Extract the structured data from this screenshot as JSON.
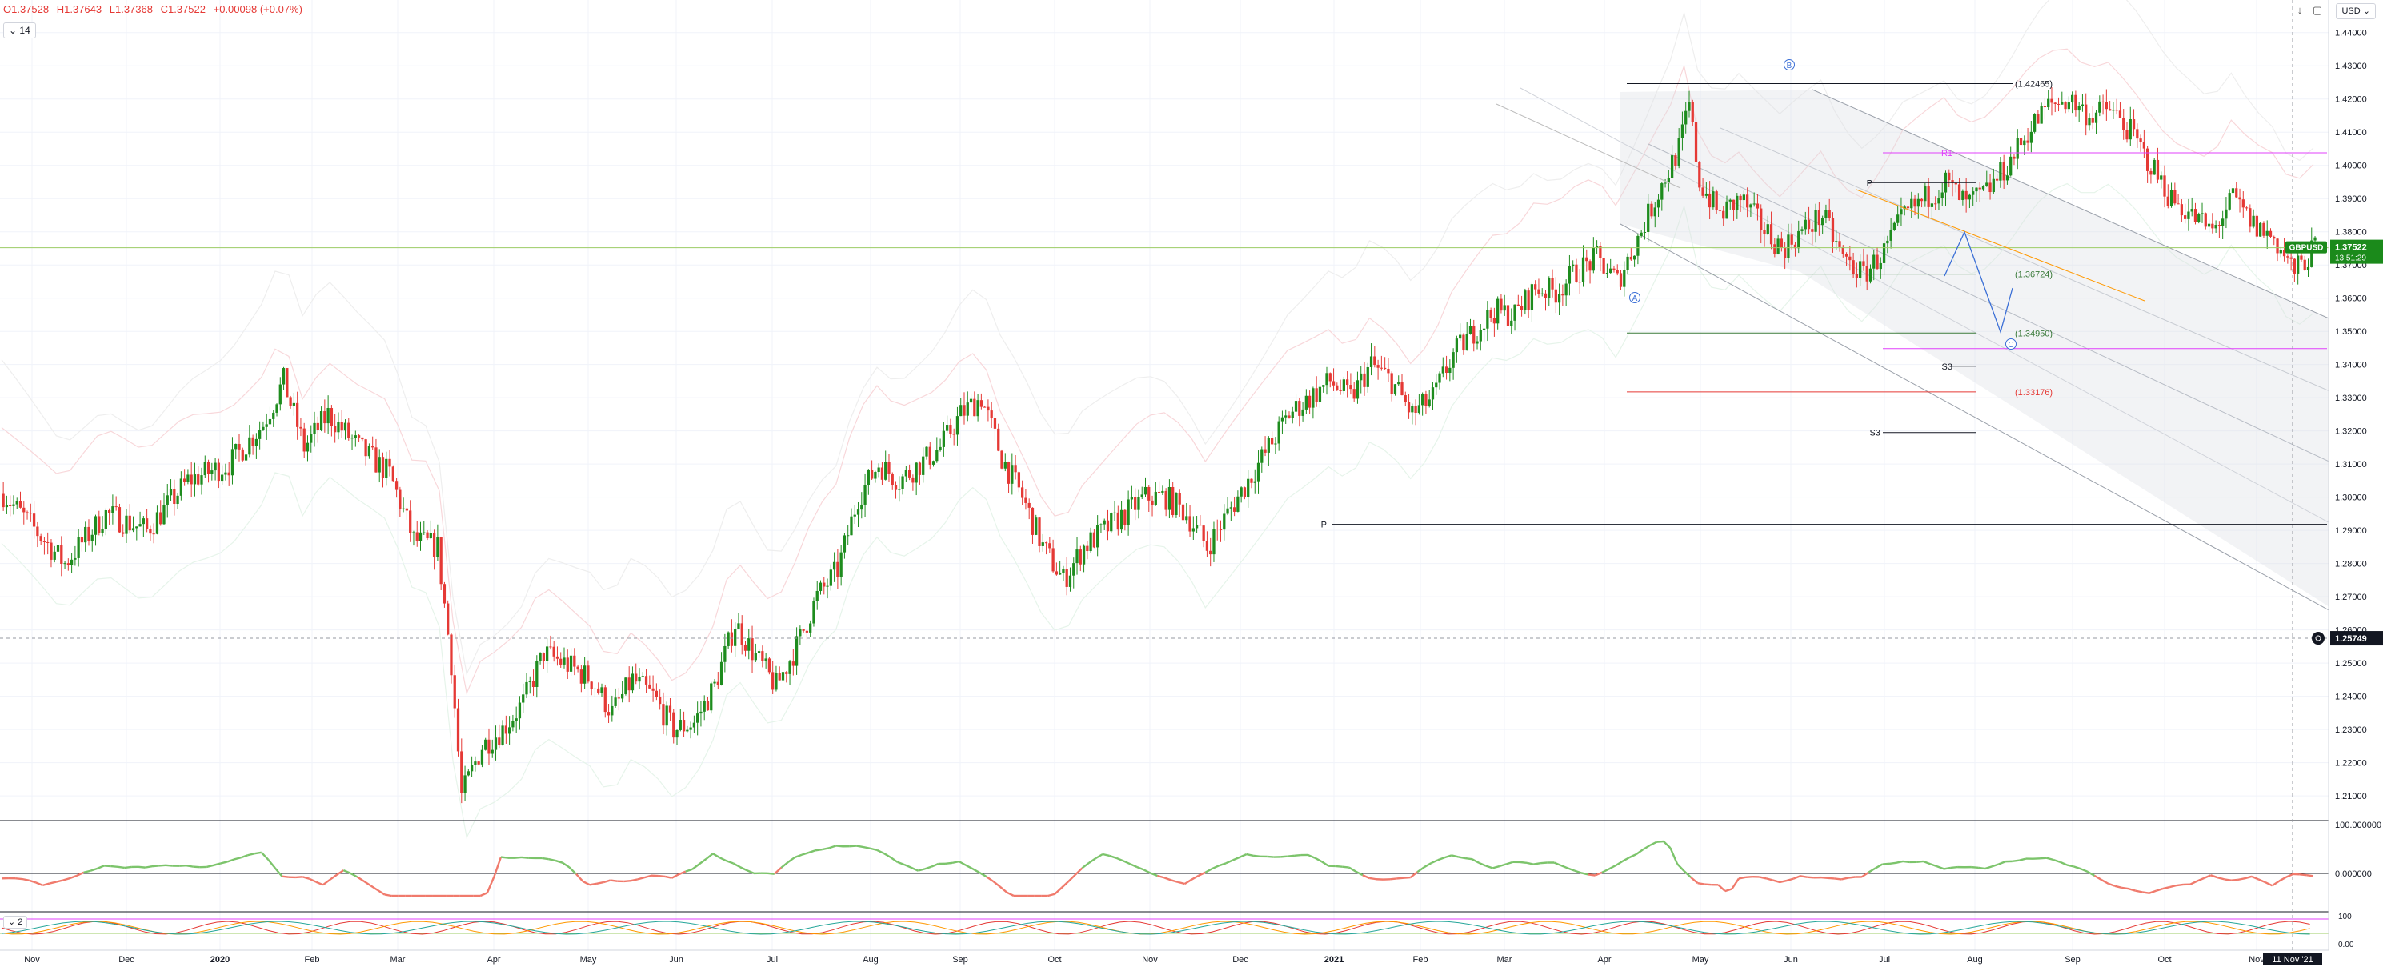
{
  "legend": {
    "open": "O1.37528",
    "high": "H1.37643",
    "low": "L1.37368",
    "close": "C1.37522",
    "change": "+0.00098 (+0.07%)",
    "indicator_value": "14",
    "indicator2_value": "2"
  },
  "currency": "USD",
  "symbol_badge": "GBPUSD",
  "last_price": "1.37522",
  "countdown": "13:51:29",
  "crosshair_price": "1.25749",
  "crosshair_date": "11 Nov '21",
  "colors": {
    "up": "#26a69a",
    "candle_up": "#1e8c1e",
    "candle_down": "#e53935",
    "badge": "#1b8a1b",
    "magenta": "#e040fb",
    "orange": "#ff9800",
    "blue": "#3b6fd6"
  },
  "chart_data": {
    "type": "candlestick",
    "symbol": "GBPUSD",
    "timeframe": "daily",
    "x_labels": [
      "Nov",
      "Dec",
      "2020",
      "Feb",
      "Mar",
      "Apr",
      "May",
      "Jun",
      "Jul",
      "Aug",
      "Sep",
      "Oct",
      "Nov",
      "Dec",
      "2021",
      "Feb",
      "Mar",
      "Apr",
      "May",
      "Jun",
      "Jul",
      "Aug",
      "Sep",
      "Oct",
      "Nov"
    ],
    "y_ticks": [
      "1.44000",
      "1.43000",
      "1.42000",
      "1.41000",
      "1.40000",
      "1.39000",
      "1.38000",
      "1.37000",
      "1.36000",
      "1.35000",
      "1.34000",
      "1.33000",
      "1.32000",
      "1.31000",
      "1.30000",
      "1.29000",
      "1.28000",
      "1.27000",
      "1.26000",
      "1.25000",
      "1.24000",
      "1.23000",
      "1.22000",
      "1.21000"
    ],
    "ylim": [
      1.204,
      1.445
    ],
    "price_path": [
      [
        0,
        1.301
      ],
      [
        18,
        1.28
      ],
      [
        30,
        1.295
      ],
      [
        42,
        1.29
      ],
      [
        54,
        1.305
      ],
      [
        66,
        1.31
      ],
      [
        76,
        1.322
      ],
      [
        82,
        1.335
      ],
      [
        88,
        1.315
      ],
      [
        95,
        1.325
      ],
      [
        104,
        1.315
      ],
      [
        113,
        1.307
      ],
      [
        120,
        1.287
      ],
      [
        127,
        1.285
      ],
      [
        131,
        1.25
      ],
      [
        134,
        1.21
      ],
      [
        140,
        1.225
      ],
      [
        146,
        1.23
      ],
      [
        152,
        1.238
      ],
      [
        158,
        1.253
      ],
      [
        164,
        1.25
      ],
      [
        172,
        1.245
      ],
      [
        178,
        1.235
      ],
      [
        184,
        1.245
      ],
      [
        190,
        1.24
      ],
      [
        196,
        1.23
      ],
      [
        202,
        1.232
      ],
      [
        208,
        1.243
      ],
      [
        214,
        1.262
      ],
      [
        220,
        1.252
      ],
      [
        226,
        1.243
      ],
      [
        232,
        1.255
      ],
      [
        238,
        1.27
      ],
      [
        244,
        1.278
      ],
      [
        250,
        1.3
      ],
      [
        256,
        1.31
      ],
      [
        262,
        1.305
      ],
      [
        268,
        1.31
      ],
      [
        274,
        1.315
      ],
      [
        280,
        1.325
      ],
      [
        286,
        1.33
      ],
      [
        292,
        1.312
      ],
      [
        298,
        1.3
      ],
      [
        304,
        1.285
      ],
      [
        310,
        1.275
      ],
      [
        316,
        1.285
      ],
      [
        322,
        1.29
      ],
      [
        328,
        1.295
      ],
      [
        334,
        1.3
      ],
      [
        340,
        1.3
      ],
      [
        346,
        1.295
      ],
      [
        352,
        1.285
      ],
      [
        358,
        1.295
      ],
      [
        364,
        1.305
      ],
      [
        370,
        1.315
      ],
      [
        376,
        1.325
      ],
      [
        382,
        1.33
      ],
      [
        388,
        1.335
      ],
      [
        394,
        1.33
      ],
      [
        400,
        1.34
      ],
      [
        406,
        1.335
      ],
      [
        412,
        1.325
      ],
      [
        418,
        1.33
      ],
      [
        424,
        1.343
      ],
      [
        430,
        1.35
      ],
      [
        436,
        1.356
      ],
      [
        442,
        1.355
      ],
      [
        448,
        1.363
      ],
      [
        454,
        1.362
      ],
      [
        460,
        1.368
      ],
      [
        466,
        1.372
      ],
      [
        472,
        1.365
      ],
      [
        478,
        1.378
      ],
      [
        484,
        1.392
      ],
      [
        490,
        1.405
      ],
      [
        493,
        1.418
      ],
      [
        496,
        1.395
      ],
      [
        502,
        1.385
      ],
      [
        508,
        1.39
      ],
      [
        514,
        1.382
      ],
      [
        520,
        1.375
      ],
      [
        526,
        1.38
      ],
      [
        532,
        1.385
      ],
      [
        538,
        1.372
      ],
      [
        544,
        1.367
      ],
      [
        550,
        1.374
      ],
      [
        556,
        1.385
      ],
      [
        562,
        1.39
      ],
      [
        568,
        1.395
      ],
      [
        574,
        1.388
      ],
      [
        580,
        1.392
      ],
      [
        586,
        1.4
      ],
      [
        592,
        1.41
      ],
      [
        598,
        1.418
      ],
      [
        604,
        1.42
      ],
      [
        610,
        1.415
      ],
      [
        616,
        1.417
      ],
      [
        622,
        1.41
      ],
      [
        628,
        1.4
      ],
      [
        634,
        1.39
      ],
      [
        640,
        1.385
      ],
      [
        646,
        1.38
      ],
      [
        652,
        1.39
      ],
      [
        658,
        1.382
      ],
      [
        664,
        1.378
      ],
      [
        670,
        1.368
      ],
      [
        676,
        1.375
      ]
    ],
    "levels": [
      {
        "label": "(1.42465)",
        "value": 1.42465,
        "color": "#131722"
      },
      {
        "label": "R1",
        "value": 1.4038,
        "color": "#e040fb"
      },
      {
        "label": "P",
        "value": 1.3948,
        "color": "#131722"
      },
      {
        "label": "(1.36724)",
        "value": 1.36724,
        "color": "#3a7a3a"
      },
      {
        "label": "(1.34950)",
        "value": 1.3495,
        "color": "#3a7a3a"
      },
      {
        "label": "S3",
        "value": 1.3395,
        "color": "#131722"
      },
      {
        "label": "(1.33176)",
        "value": 1.33176,
        "color": "#e53935"
      },
      {
        "label": "S3",
        "value": 1.3195,
        "color": "#131722"
      },
      {
        "label": "P",
        "value": 1.2918,
        "color": "#131722"
      }
    ],
    "wave_labels": [
      "A",
      "B",
      "C"
    ],
    "reference_line": 1.3752,
    "osc1_ticks": [
      "100.000000",
      "0.000000"
    ],
    "osc2_ticks": [
      "100",
      "0.00"
    ]
  }
}
